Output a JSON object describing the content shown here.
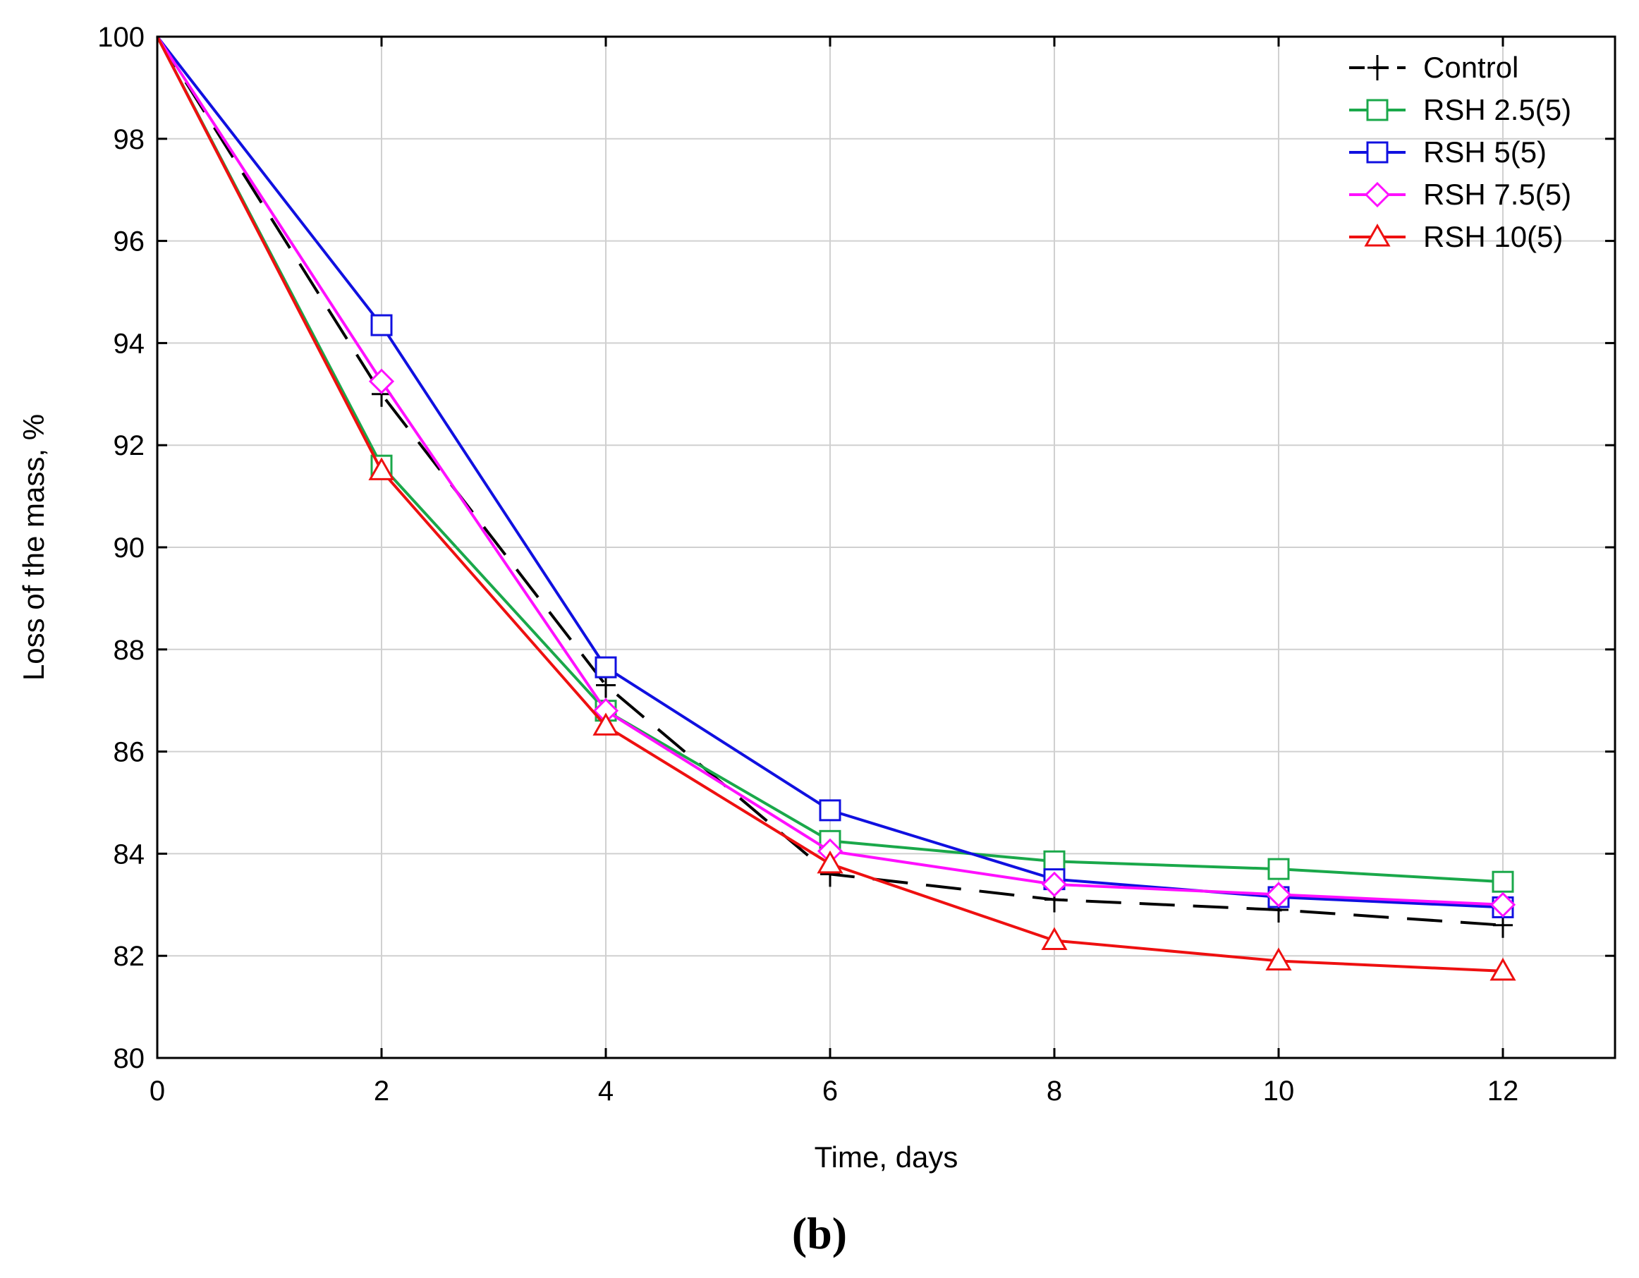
{
  "chart_data": {
    "type": "line",
    "title": "",
    "xlabel": "Time, days",
    "ylabel": "Loss of the mass, %",
    "panel_label": "(b)",
    "xlim": [
      0,
      13
    ],
    "ylim": [
      80,
      100
    ],
    "xticks": [
      0,
      2,
      4,
      6,
      8,
      10,
      12
    ],
    "yticks": [
      80,
      82,
      84,
      86,
      88,
      90,
      92,
      94,
      96,
      98,
      100
    ],
    "grid": true,
    "legend_position": "top-right",
    "x": [
      0,
      2,
      4,
      6,
      8,
      10,
      12
    ],
    "series": [
      {
        "name": "Control",
        "color": "#000000",
        "marker": "plus",
        "dashed": true,
        "values": [
          100,
          93.0,
          87.3,
          83.6,
          83.1,
          82.9,
          82.6
        ]
      },
      {
        "name": "RSH 2.5(5)",
        "color": "#1aa84a",
        "marker": "square",
        "dashed": false,
        "values": [
          100,
          91.6,
          86.8,
          84.25,
          83.85,
          83.7,
          83.45
        ]
      },
      {
        "name": "RSH 5(5)",
        "color": "#1010e0",
        "marker": "square",
        "dashed": false,
        "values": [
          100,
          94.35,
          87.65,
          84.85,
          83.5,
          83.15,
          82.95
        ]
      },
      {
        "name": "RSH 7.5(5)",
        "color": "#ff10ff",
        "marker": "diamond",
        "dashed": false,
        "values": [
          100,
          93.25,
          86.8,
          84.05,
          83.4,
          83.2,
          83.0
        ]
      },
      {
        "name": "RSH 10(5)",
        "color": "#ee1010",
        "marker": "triangle",
        "dashed": false,
        "values": [
          100,
          91.5,
          86.5,
          83.8,
          82.3,
          81.9,
          81.7
        ]
      }
    ]
  }
}
